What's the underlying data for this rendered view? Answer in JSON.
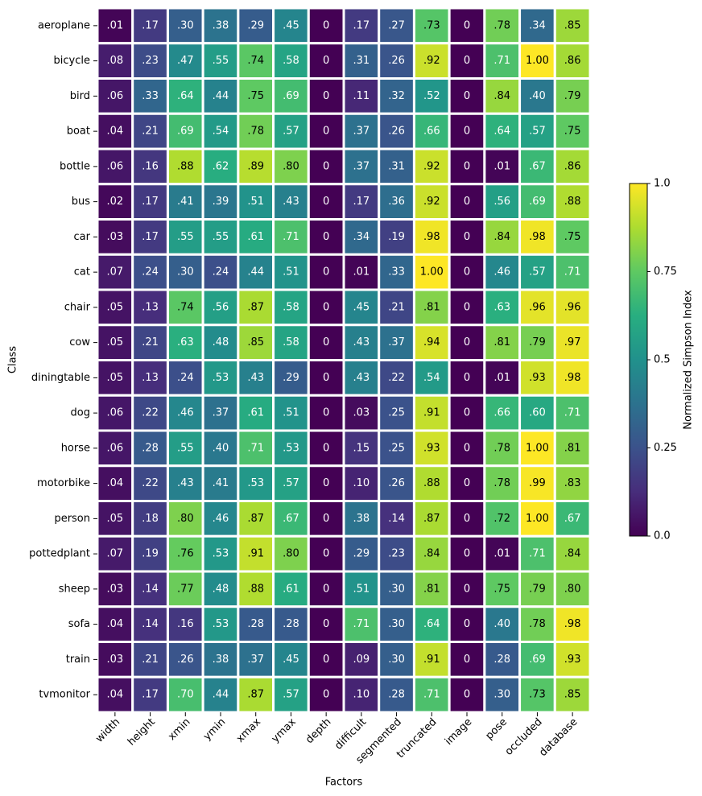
{
  "chart_data": {
    "type": "heatmap",
    "xlabel": "Factors",
    "ylabel": "Class",
    "colorbar_label": "Normalized Simpson Index",
    "colormap": "viridis",
    "clim": [
      0,
      1
    ],
    "colorbar_ticks": [
      {
        "value": 0,
        "label": "0.0"
      },
      0.25,
      0.5,
      0.75,
      {
        "value": 1,
        "label": "1.0"
      }
    ],
    "x_categories": [
      "width",
      "height",
      "xmin",
      "ymin",
      "xmax",
      "ymax",
      "depth",
      "difficult",
      "segmented",
      "truncated",
      "image",
      "pose",
      "occluded",
      "database"
    ],
    "y_categories": [
      "aeroplane",
      "bicycle",
      "bird",
      "boat",
      "bottle",
      "bus",
      "car",
      "cat",
      "chair",
      "cow",
      "diningtable",
      "dog",
      "horse",
      "motorbike",
      "person",
      "pottedplant",
      "sheep",
      "sofa",
      "train",
      "tvmonitor"
    ],
    "values": [
      [
        0.01,
        0.17,
        0.3,
        0.38,
        0.29,
        0.45,
        0,
        0.17,
        0.27,
        0.73,
        0,
        0.78,
        0.34,
        0.85
      ],
      [
        0.08,
        0.23,
        0.47,
        0.55,
        0.74,
        0.58,
        0,
        0.31,
        0.26,
        0.92,
        0,
        0.71,
        1.0,
        0.86
      ],
      [
        0.06,
        0.33,
        0.64,
        0.44,
        0.75,
        0.69,
        0,
        0.11,
        0.32,
        0.52,
        0,
        0.84,
        0.4,
        0.79
      ],
      [
        0.04,
        0.21,
        0.69,
        0.54,
        0.78,
        0.57,
        0,
        0.37,
        0.26,
        0.66,
        0,
        0.64,
        0.57,
        0.75
      ],
      [
        0.06,
        0.16,
        0.88,
        0.62,
        0.89,
        0.8,
        0,
        0.37,
        0.31,
        0.92,
        0,
        0.01,
        0.67,
        0.86
      ],
      [
        0.02,
        0.17,
        0.41,
        0.39,
        0.51,
        0.43,
        0,
        0.17,
        0.36,
        0.92,
        0,
        0.56,
        0.69,
        0.88
      ],
      [
        0.03,
        0.17,
        0.55,
        0.55,
        0.61,
        0.71,
        0,
        0.34,
        0.19,
        0.98,
        0,
        0.84,
        0.98,
        0.75
      ],
      [
        0.07,
        0.24,
        0.3,
        0.24,
        0.44,
        0.51,
        0,
        0.01,
        0.33,
        1.0,
        0,
        0.46,
        0.57,
        0.71
      ],
      [
        0.05,
        0.13,
        0.74,
        0.56,
        0.87,
        0.58,
        0,
        0.45,
        0.21,
        0.81,
        0,
        0.63,
        0.96,
        0.96
      ],
      [
        0.05,
        0.21,
        0.63,
        0.48,
        0.85,
        0.58,
        0,
        0.43,
        0.37,
        0.94,
        0,
        0.81,
        0.79,
        0.97
      ],
      [
        0.05,
        0.13,
        0.24,
        0.53,
        0.43,
        0.29,
        0,
        0.43,
        0.22,
        0.54,
        0,
        0.01,
        0.93,
        0.98
      ],
      [
        0.06,
        0.22,
        0.46,
        0.37,
        0.61,
        0.51,
        0,
        0.03,
        0.25,
        0.91,
        0,
        0.66,
        0.6,
        0.71
      ],
      [
        0.06,
        0.28,
        0.55,
        0.4,
        0.71,
        0.53,
        0,
        0.15,
        0.25,
        0.93,
        0,
        0.78,
        1.0,
        0.81
      ],
      [
        0.04,
        0.22,
        0.43,
        0.41,
        0.53,
        0.57,
        0,
        0.1,
        0.26,
        0.88,
        0,
        0.78,
        0.99,
        0.83
      ],
      [
        0.05,
        0.18,
        0.8,
        0.46,
        0.87,
        0.67,
        0,
        0.38,
        0.14,
        0.87,
        0,
        0.72,
        1.0,
        0.67
      ],
      [
        0.07,
        0.19,
        0.76,
        0.53,
        0.91,
        0.8,
        0,
        0.29,
        0.23,
        0.84,
        0,
        0.01,
        0.71,
        0.84
      ],
      [
        0.03,
        0.14,
        0.77,
        0.48,
        0.88,
        0.61,
        0,
        0.51,
        0.3,
        0.81,
        0,
        0.75,
        0.79,
        0.8
      ],
      [
        0.04,
        0.14,
        0.16,
        0.53,
        0.28,
        0.28,
        0,
        0.71,
        0.3,
        0.64,
        0,
        0.4,
        0.78,
        0.98
      ],
      [
        0.03,
        0.21,
        0.26,
        0.38,
        0.37,
        0.45,
        0,
        0.09,
        0.3,
        0.91,
        0,
        0.28,
        0.69,
        0.93
      ],
      [
        0.04,
        0.17,
        0.7,
        0.44,
        0.87,
        0.57,
        0,
        0.1,
        0.28,
        0.71,
        0,
        0.3,
        0.73,
        0.85
      ]
    ],
    "value_labels": [
      [
        ".01",
        ".17",
        ".30",
        ".38",
        ".29",
        ".45",
        "0",
        ".17",
        ".27",
        ".73",
        "0",
        ".78",
        ".34",
        ".85"
      ],
      [
        ".08",
        ".23",
        ".47",
        ".55",
        ".74",
        ".58",
        "0",
        ".31",
        ".26",
        ".92",
        "0",
        ".71",
        "1.00",
        ".86"
      ],
      [
        ".06",
        ".33",
        ".64",
        ".44",
        ".75",
        ".69",
        "0",
        ".11",
        ".32",
        ".52",
        "0",
        ".84",
        ".40",
        ".79"
      ],
      [
        ".04",
        ".21",
        ".69",
        ".54",
        ".78",
        ".57",
        "0",
        ".37",
        ".26",
        ".66",
        "0",
        ".64",
        ".57",
        ".75"
      ],
      [
        ".06",
        ".16",
        ".88",
        ".62",
        ".89",
        ".80",
        "0",
        ".37",
        ".31",
        ".92",
        "0",
        ".01",
        ".67",
        ".86"
      ],
      [
        ".02",
        ".17",
        ".41",
        ".39",
        ".51",
        ".43",
        "0",
        ".17",
        ".36",
        ".92",
        "0",
        ".56",
        ".69",
        ".88"
      ],
      [
        ".03",
        ".17",
        ".55",
        ".55",
        ".61",
        ".71",
        "0",
        ".34",
        ".19",
        ".98",
        "0",
        ".84",
        ".98",
        ".75"
      ],
      [
        ".07",
        ".24",
        ".30",
        ".24",
        ".44",
        ".51",
        "0",
        ".01",
        ".33",
        "1.00",
        "0",
        ".46",
        ".57",
        ".71"
      ],
      [
        ".05",
        ".13",
        ".74",
        ".56",
        ".87",
        ".58",
        "0",
        ".45",
        ".21",
        ".81",
        "0",
        ".63",
        ".96",
        ".96"
      ],
      [
        ".05",
        ".21",
        ".63",
        ".48",
        ".85",
        ".58",
        "0",
        ".43",
        ".37",
        ".94",
        "0",
        ".81",
        ".79",
        ".97"
      ],
      [
        ".05",
        ".13",
        ".24",
        ".53",
        ".43",
        ".29",
        "0",
        ".43",
        ".22",
        ".54",
        "0",
        ".01",
        ".93",
        ".98"
      ],
      [
        ".06",
        ".22",
        ".46",
        ".37",
        ".61",
        ".51",
        "0",
        ".03",
        ".25",
        ".91",
        "0",
        ".66",
        ".60",
        ".71"
      ],
      [
        ".06",
        ".28",
        ".55",
        ".40",
        ".71",
        ".53",
        "0",
        ".15",
        ".25",
        ".93",
        "0",
        ".78",
        "1.00",
        ".81"
      ],
      [
        ".04",
        ".22",
        ".43",
        ".41",
        ".53",
        ".57",
        "0",
        ".10",
        ".26",
        ".88",
        "0",
        ".78",
        ".99",
        ".83"
      ],
      [
        ".05",
        ".18",
        ".80",
        ".46",
        ".87",
        ".67",
        "0",
        ".38",
        ".14",
        ".87",
        "0",
        ".72",
        "1.00",
        ".67"
      ],
      [
        ".07",
        ".19",
        ".76",
        ".53",
        ".91",
        ".80",
        "0",
        ".29",
        ".23",
        ".84",
        "0",
        ".01",
        ".71",
        ".84"
      ],
      [
        ".03",
        ".14",
        ".77",
        ".48",
        ".88",
        ".61",
        "0",
        ".51",
        ".30",
        ".81",
        "0",
        ".75",
        ".79",
        ".80"
      ],
      [
        ".04",
        ".14",
        ".16",
        ".53",
        ".28",
        ".28",
        "0",
        ".71",
        ".30",
        ".64",
        "0",
        ".40",
        ".78",
        ".98"
      ],
      [
        ".03",
        ".21",
        ".26",
        ".38",
        ".37",
        ".45",
        "0",
        ".09",
        ".30",
        ".91",
        "0",
        ".28",
        ".69",
        ".93"
      ],
      [
        ".04",
        ".17",
        ".70",
        ".44",
        ".87",
        ".57",
        "0",
        ".10",
        ".28",
        ".71",
        "0",
        ".30",
        ".73",
        ".85"
      ]
    ]
  }
}
